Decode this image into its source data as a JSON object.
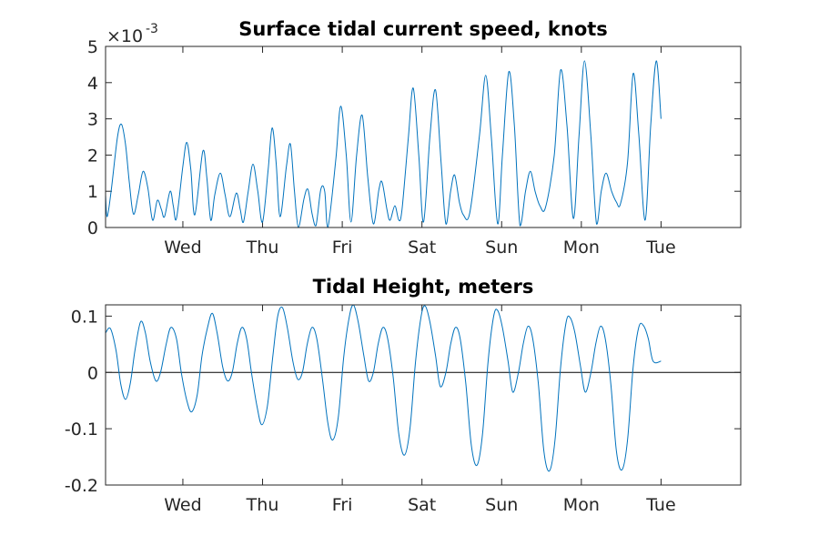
{
  "chart_data": [
    {
      "type": "line",
      "title": "Surface tidal current speed, knots",
      "xlabel": "",
      "ylabel": "",
      "x_ticks": [
        "Wed",
        "Thu",
        "Fri",
        "Sat",
        "Sun",
        "Mon",
        "Tue"
      ],
      "xlim_days": [
        -0.97,
        7.0
      ],
      "ylim": [
        0,
        5
      ],
      "y_ticks": [
        "0",
        "1",
        "2",
        "3",
        "4",
        "5"
      ],
      "y_multiplier_base": "×10",
      "y_multiplier_exponent": "-3",
      "grid": false,
      "series": [
        {
          "color": "#0072BD",
          "points": [
            [
              -0.97,
              0.9
            ],
            [
              -0.95,
              0.3
            ],
            [
              -0.9,
              1.0
            ],
            [
              -0.82,
              2.5
            ],
            [
              -0.77,
              2.85
            ],
            [
              -0.72,
              2.3
            ],
            [
              -0.67,
              1.2
            ],
            [
              -0.62,
              0.37
            ],
            [
              -0.56,
              0.9
            ],
            [
              -0.5,
              1.55
            ],
            [
              -0.44,
              1.1
            ],
            [
              -0.38,
              0.2
            ],
            [
              -0.32,
              0.75
            ],
            [
              -0.27,
              0.5
            ],
            [
              -0.23,
              0.3
            ],
            [
              -0.16,
              1.0
            ],
            [
              -0.12,
              0.6
            ],
            [
              -0.08,
              0.25
            ],
            [
              0.0,
              1.7
            ],
            [
              0.05,
              2.35
            ],
            [
              0.1,
              1.6
            ],
            [
              0.15,
              0.35
            ],
            [
              0.25,
              2.1
            ],
            [
              0.3,
              1.4
            ],
            [
              0.35,
              0.2
            ],
            [
              0.4,
              0.9
            ],
            [
              0.47,
              1.5
            ],
            [
              0.53,
              0.9
            ],
            [
              0.59,
              0.3
            ],
            [
              0.67,
              0.95
            ],
            [
              0.72,
              0.5
            ],
            [
              0.76,
              0.15
            ],
            [
              0.82,
              1.0
            ],
            [
              0.88,
              1.75
            ],
            [
              0.94,
              1.0
            ],
            [
              1.0,
              0.15
            ],
            [
              1.07,
              1.6
            ],
            [
              1.12,
              2.75
            ],
            [
              1.17,
              1.8
            ],
            [
              1.22,
              0.3
            ],
            [
              1.3,
              1.7
            ],
            [
              1.35,
              2.3
            ],
            [
              1.4,
              1.0
            ],
            [
              1.45,
              0.0
            ],
            [
              1.52,
              0.8
            ],
            [
              1.57,
              1.05
            ],
            [
              1.62,
              0.4
            ],
            [
              1.67,
              0.05
            ],
            [
              1.73,
              1.05
            ],
            [
              1.78,
              1.0
            ],
            [
              1.82,
              0.0
            ],
            [
              1.92,
              1.9
            ],
            [
              1.98,
              3.35
            ],
            [
              2.05,
              2.0
            ],
            [
              2.11,
              0.15
            ],
            [
              2.18,
              2.0
            ],
            [
              2.25,
              3.1
            ],
            [
              2.32,
              1.4
            ],
            [
              2.39,
              0.1
            ],
            [
              2.46,
              1.05
            ],
            [
              2.5,
              1.25
            ],
            [
              2.56,
              0.5
            ],
            [
              2.6,
              0.2
            ],
            [
              2.66,
              0.6
            ],
            [
              2.71,
              0.2
            ],
            [
              2.75,
              0.5
            ],
            [
              2.83,
              2.5
            ],
            [
              2.89,
              3.85
            ],
            [
              2.96,
              2.0
            ],
            [
              3.02,
              0.15
            ],
            [
              3.1,
              2.5
            ],
            [
              3.17,
              3.8
            ],
            [
              3.24,
              1.8
            ],
            [
              3.3,
              0.1
            ],
            [
              3.36,
              1.0
            ],
            [
              3.41,
              1.45
            ],
            [
              3.47,
              0.7
            ],
            [
              3.52,
              0.35
            ],
            [
              3.6,
              0.4
            ],
            [
              3.72,
              2.5
            ],
            [
              3.8,
              4.2
            ],
            [
              3.87,
              2.5
            ],
            [
              3.95,
              0.1
            ],
            [
              4.01,
              2.0
            ],
            [
              4.09,
              4.3
            ],
            [
              4.16,
              2.8
            ],
            [
              4.23,
              0.05
            ],
            [
              4.3,
              1.0
            ],
            [
              4.36,
              1.55
            ],
            [
              4.42,
              1.0
            ],
            [
              4.48,
              0.6
            ],
            [
              4.55,
              0.55
            ],
            [
              4.66,
              2.0
            ],
            [
              4.74,
              4.35
            ],
            [
              4.82,
              2.8
            ],
            [
              4.9,
              0.25
            ],
            [
              4.97,
              2.5
            ],
            [
              5.04,
              4.6
            ],
            [
              5.12,
              2.5
            ],
            [
              5.19,
              0.1
            ],
            [
              5.25,
              1.0
            ],
            [
              5.31,
              1.5
            ],
            [
              5.38,
              1.0
            ],
            [
              5.44,
              0.7
            ],
            [
              5.49,
              0.65
            ],
            [
              5.58,
              1.8
            ],
            [
              5.65,
              4.25
            ],
            [
              5.72,
              2.6
            ],
            [
              5.8,
              0.2
            ],
            [
              5.87,
              2.8
            ],
            [
              5.94,
              4.6
            ],
            [
              6.0,
              3.0
            ]
          ]
        }
      ]
    },
    {
      "type": "line",
      "title": "Tidal Height, meters",
      "xlabel": "",
      "ylabel": "",
      "x_ticks": [
        "Wed",
        "Thu",
        "Fri",
        "Sat",
        "Sun",
        "Mon",
        "Tue"
      ],
      "xlim_days": [
        -0.97,
        7.0
      ],
      "ylim": [
        -0.2,
        0.12
      ],
      "y_ticks": [
        "0.1",
        "0",
        "-0.1",
        "-0.2"
      ],
      "zero_line": true,
      "grid": false,
      "series": [
        {
          "color": "#0072BD",
          "points": [
            [
              -0.97,
              0.07
            ],
            [
              -0.91,
              0.078
            ],
            [
              -0.84,
              0.04
            ],
            [
              -0.78,
              -0.02
            ],
            [
              -0.72,
              -0.048
            ],
            [
              -0.66,
              -0.02
            ],
            [
              -0.6,
              0.04
            ],
            [
              -0.53,
              0.09
            ],
            [
              -0.47,
              0.07
            ],
            [
              -0.41,
              0.02
            ],
            [
              -0.34,
              -0.015
            ],
            [
              -0.28,
              0.0
            ],
            [
              -0.21,
              0.05
            ],
            [
              -0.15,
              0.08
            ],
            [
              -0.08,
              0.06
            ],
            [
              -0.02,
              0.0
            ],
            [
              0.05,
              -0.05
            ],
            [
              0.11,
              -0.07
            ],
            [
              0.18,
              -0.04
            ],
            [
              0.24,
              0.03
            ],
            [
              0.31,
              0.08
            ],
            [
              0.37,
              0.105
            ],
            [
              0.43,
              0.07
            ],
            [
              0.5,
              0.01
            ],
            [
              0.56,
              -0.015
            ],
            [
              0.62,
              0.0
            ],
            [
              0.68,
              0.05
            ],
            [
              0.74,
              0.08
            ],
            [
              0.8,
              0.06
            ],
            [
              0.86,
              0.0
            ],
            [
              0.93,
              -0.06
            ],
            [
              0.99,
              -0.093
            ],
            [
              1.06,
              -0.06
            ],
            [
              1.13,
              0.03
            ],
            [
              1.19,
              0.1
            ],
            [
              1.25,
              0.115
            ],
            [
              1.31,
              0.08
            ],
            [
              1.38,
              0.02
            ],
            [
              1.44,
              -0.012
            ],
            [
              1.5,
              0.0
            ],
            [
              1.56,
              0.05
            ],
            [
              1.62,
              0.08
            ],
            [
              1.68,
              0.06
            ],
            [
              1.75,
              -0.01
            ],
            [
              1.82,
              -0.09
            ],
            [
              1.88,
              -0.12
            ],
            [
              1.95,
              -0.08
            ],
            [
              2.02,
              0.03
            ],
            [
              2.09,
              0.1
            ],
            [
              2.14,
              0.12
            ],
            [
              2.2,
              0.09
            ],
            [
              2.27,
              0.03
            ],
            [
              2.33,
              -0.015
            ],
            [
              2.39,
              0.0
            ],
            [
              2.45,
              0.05
            ],
            [
              2.51,
              0.08
            ],
            [
              2.57,
              0.06
            ],
            [
              2.64,
              -0.01
            ],
            [
              2.71,
              -0.11
            ],
            [
              2.78,
              -0.147
            ],
            [
              2.85,
              -0.1
            ],
            [
              2.92,
              0.02
            ],
            [
              2.99,
              0.1
            ],
            [
              3.04,
              0.118
            ],
            [
              3.1,
              0.09
            ],
            [
              3.17,
              0.03
            ],
            [
              3.23,
              -0.025
            ],
            [
              3.3,
              0.0
            ],
            [
              3.36,
              0.05
            ],
            [
              3.42,
              0.08
            ],
            [
              3.48,
              0.06
            ],
            [
              3.55,
              -0.02
            ],
            [
              3.62,
              -0.13
            ],
            [
              3.69,
              -0.165
            ],
            [
              3.76,
              -0.11
            ],
            [
              3.83,
              0.02
            ],
            [
              3.9,
              0.1
            ],
            [
              3.95,
              0.11
            ],
            [
              4.01,
              0.08
            ],
            [
              4.08,
              0.02
            ],
            [
              4.14,
              -0.035
            ],
            [
              4.21,
              0.0
            ],
            [
              4.27,
              0.05
            ],
            [
              4.33,
              0.082
            ],
            [
              4.39,
              0.06
            ],
            [
              4.46,
              -0.02
            ],
            [
              4.53,
              -0.14
            ],
            [
              4.6,
              -0.175
            ],
            [
              4.67,
              -0.12
            ],
            [
              4.74,
              0.01
            ],
            [
              4.81,
              0.09
            ],
            [
              4.86,
              0.097
            ],
            [
              4.92,
              0.07
            ],
            [
              4.99,
              0.01
            ],
            [
              5.05,
              -0.035
            ],
            [
              5.12,
              0.0
            ],
            [
              5.18,
              0.05
            ],
            [
              5.24,
              0.082
            ],
            [
              5.3,
              0.06
            ],
            [
              5.37,
              -0.02
            ],
            [
              5.44,
              -0.14
            ],
            [
              5.51,
              -0.173
            ],
            [
              5.58,
              -0.12
            ],
            [
              5.65,
              0.01
            ],
            [
              5.72,
              0.08
            ],
            [
              5.78,
              0.083
            ],
            [
              5.84,
              0.06
            ],
            [
              5.9,
              0.02
            ],
            [
              6.0,
              0.02
            ]
          ]
        }
      ]
    }
  ]
}
